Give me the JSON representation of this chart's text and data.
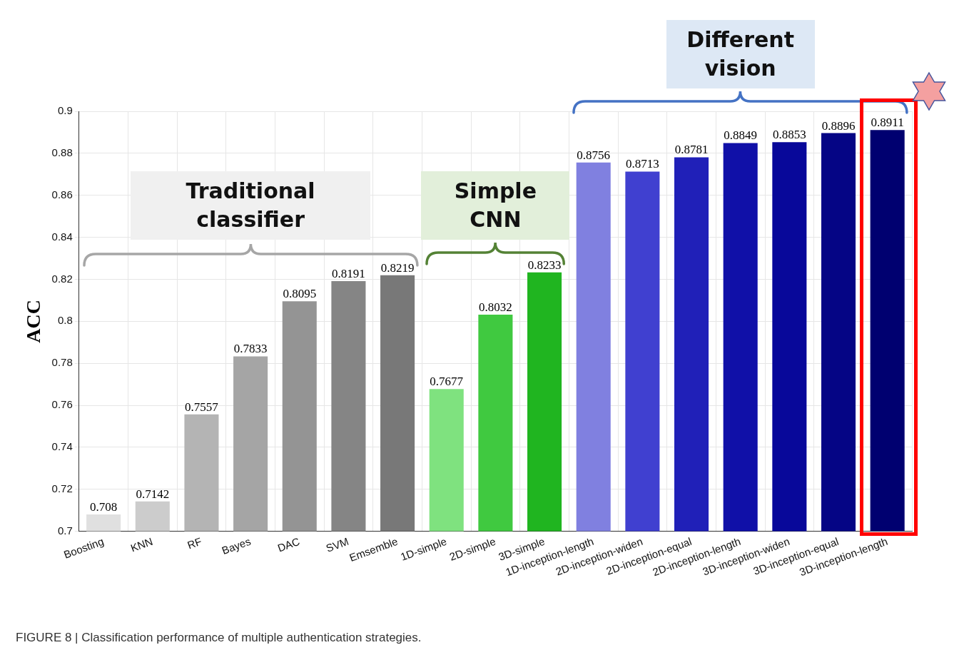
{
  "chart_data": {
    "type": "bar",
    "ylabel": "ACC",
    "categories": [
      "Boosting",
      "KNN",
      "RF",
      "Bayes",
      "DAC",
      "SVM",
      "Emsemble",
      "1D-simple",
      "2D-simple",
      "3D-simple",
      "1D-inception-length",
      "2D-inception-widen",
      "2D-inception-equal",
      "2D-inception-length",
      "3D-inception-widen",
      "3D-inception-equal",
      "3D-inception-length"
    ],
    "values": [
      0.708,
      0.7142,
      0.7557,
      0.7833,
      0.8095,
      0.8191,
      0.8219,
      0.7677,
      0.8032,
      0.8233,
      0.8756,
      0.8713,
      0.8781,
      0.8849,
      0.8853,
      0.8896,
      0.8911
    ],
    "colors": [
      "#e0e0e0",
      "#cccccc",
      "#b4b4b4",
      "#a5a5a5",
      "#949494",
      "#858585",
      "#787878",
      "#7fe27f",
      "#40c940",
      "#20b520",
      "#8080e0",
      "#4040d0",
      "#2020b8",
      "#1010a8",
      "#08089a",
      "#050585",
      "#000070"
    ],
    "ylim": [
      0.7,
      0.9
    ],
    "yticks": [
      0.7,
      0.72,
      0.74,
      0.76,
      0.78,
      0.8,
      0.82,
      0.84,
      0.86,
      0.88,
      0.9
    ],
    "grid": true,
    "data_labels": true,
    "legend": false,
    "annotations": [
      "Traditional classifier",
      "Simple CNN",
      "Different vision",
      "FIGURE 8 | Classification performance of multiple authentication strategies."
    ]
  }
}
